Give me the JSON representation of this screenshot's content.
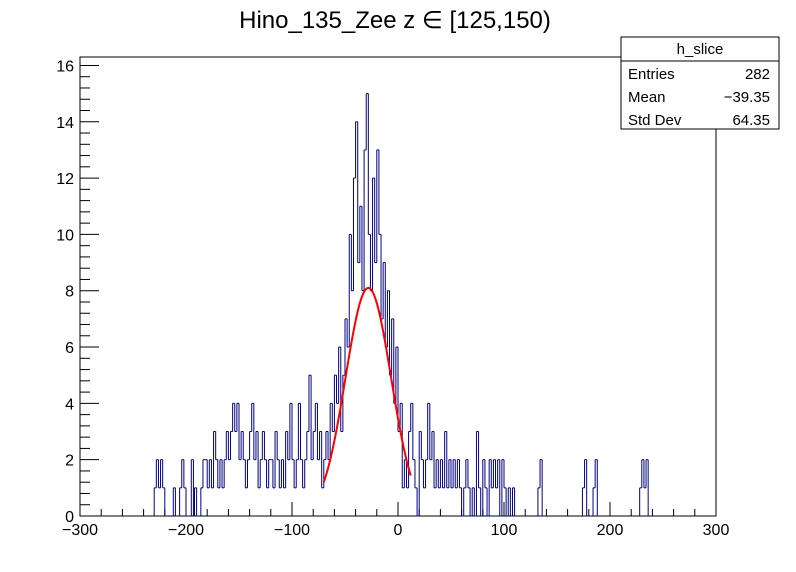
{
  "chart_data": {
    "type": "bar",
    "title": "Hino_135_Zee z  ∈ [125,150)",
    "xlabel": "",
    "ylabel": "",
    "xlim": [
      -300,
      300
    ],
    "ylim": [
      0,
      16.3
    ],
    "x_ticks": [
      "−300",
      "−200",
      "−100",
      "0",
      "100",
      "200",
      "300"
    ],
    "x_tick_values": [
      -300,
      -200,
      -100,
      0,
      100,
      200,
      300
    ],
    "y_ticks": [
      "0",
      "2",
      "4",
      "6",
      "8",
      "10",
      "12",
      "14",
      "16"
    ],
    "y_tick_values": [
      0,
      2,
      4,
      6,
      8,
      10,
      12,
      14,
      16
    ],
    "bin_width": 2,
    "histogram": [
      {
        "x": -280,
        "y": 0
      },
      {
        "x": -230,
        "y": 1
      },
      {
        "x": -228,
        "y": 2
      },
      {
        "x": -226,
        "y": 1
      },
      {
        "x": -224,
        "y": 2
      },
      {
        "x": -222,
        "y": 1
      },
      {
        "x": -220,
        "y": 0
      },
      {
        "x": -212,
        "y": 1
      },
      {
        "x": -210,
        "y": 0
      },
      {
        "x": -206,
        "y": 1
      },
      {
        "x": -204,
        "y": 2
      },
      {
        "x": -202,
        "y": 1
      },
      {
        "x": -200,
        "y": 0
      },
      {
        "x": -195,
        "y": 2
      },
      {
        "x": -192,
        "y": 1
      },
      {
        "x": -190,
        "y": 0
      },
      {
        "x": -186,
        "y": 1
      },
      {
        "x": -184,
        "y": 2
      },
      {
        "x": -182,
        "y": 2
      },
      {
        "x": -180,
        "y": 1
      },
      {
        "x": -178,
        "y": 2
      },
      {
        "x": -176,
        "y": 1
      },
      {
        "x": -174,
        "y": 3
      },
      {
        "x": -172,
        "y": 2
      },
      {
        "x": -170,
        "y": 1
      },
      {
        "x": -168,
        "y": 2
      },
      {
        "x": -166,
        "y": 1
      },
      {
        "x": -164,
        "y": 2
      },
      {
        "x": -162,
        "y": 3
      },
      {
        "x": -160,
        "y": 2
      },
      {
        "x": -158,
        "y": 3
      },
      {
        "x": -156,
        "y": 4
      },
      {
        "x": -154,
        "y": 3
      },
      {
        "x": -152,
        "y": 4
      },
      {
        "x": -150,
        "y": 2
      },
      {
        "x": -148,
        "y": 3
      },
      {
        "x": -146,
        "y": 2
      },
      {
        "x": -144,
        "y": 1
      },
      {
        "x": -142,
        "y": 2
      },
      {
        "x": -140,
        "y": 3
      },
      {
        "x": -138,
        "y": 4
      },
      {
        "x": -136,
        "y": 2
      },
      {
        "x": -134,
        "y": 3
      },
      {
        "x": -132,
        "y": 1
      },
      {
        "x": -130,
        "y": 2
      },
      {
        "x": -128,
        "y": 3
      },
      {
        "x": -126,
        "y": 2
      },
      {
        "x": -124,
        "y": 1
      },
      {
        "x": -122,
        "y": 2
      },
      {
        "x": -120,
        "y": 2
      },
      {
        "x": -118,
        "y": 1
      },
      {
        "x": -116,
        "y": 3
      },
      {
        "x": -114,
        "y": 2
      },
      {
        "x": -112,
        "y": 1
      },
      {
        "x": -110,
        "y": 2
      },
      {
        "x": -108,
        "y": 1
      },
      {
        "x": -106,
        "y": 3
      },
      {
        "x": -104,
        "y": 2
      },
      {
        "x": -102,
        "y": 4
      },
      {
        "x": -100,
        "y": 2
      },
      {
        "x": -98,
        "y": 1
      },
      {
        "x": -96,
        "y": 2
      },
      {
        "x": -94,
        "y": 4
      },
      {
        "x": -92,
        "y": 2
      },
      {
        "x": -90,
        "y": 1
      },
      {
        "x": -88,
        "y": 2
      },
      {
        "x": -86,
        "y": 3
      },
      {
        "x": -84,
        "y": 5
      },
      {
        "x": -82,
        "y": 2
      },
      {
        "x": -80,
        "y": 3
      },
      {
        "x": -78,
        "y": 4
      },
      {
        "x": -76,
        "y": 2
      },
      {
        "x": -74,
        "y": 3
      },
      {
        "x": -72,
        "y": 1
      },
      {
        "x": -70,
        "y": 2
      },
      {
        "x": -68,
        "y": 3
      },
      {
        "x": -66,
        "y": 2
      },
      {
        "x": -64,
        "y": 4
      },
      {
        "x": -62,
        "y": 3
      },
      {
        "x": -60,
        "y": 5
      },
      {
        "x": -58,
        "y": 4
      },
      {
        "x": -56,
        "y": 6
      },
      {
        "x": -54,
        "y": 3
      },
      {
        "x": -52,
        "y": 5
      },
      {
        "x": -50,
        "y": 7
      },
      {
        "x": -48,
        "y": 6
      },
      {
        "x": -46,
        "y": 10
      },
      {
        "x": -44,
        "y": 8
      },
      {
        "x": -42,
        "y": 12
      },
      {
        "x": -40,
        "y": 14
      },
      {
        "x": -38,
        "y": 9
      },
      {
        "x": -36,
        "y": 11
      },
      {
        "x": -34,
        "y": 8
      },
      {
        "x": -32,
        "y": 13
      },
      {
        "x": -30,
        "y": 15
      },
      {
        "x": -28,
        "y": 10
      },
      {
        "x": -26,
        "y": 8
      },
      {
        "x": -24,
        "y": 12
      },
      {
        "x": -22,
        "y": 9
      },
      {
        "x": -20,
        "y": 13
      },
      {
        "x": -18,
        "y": 10
      },
      {
        "x": -16,
        "y": 7
      },
      {
        "x": -14,
        "y": 9
      },
      {
        "x": -12,
        "y": 6
      },
      {
        "x": -10,
        "y": 8
      },
      {
        "x": -8,
        "y": 5
      },
      {
        "x": -6,
        "y": 7
      },
      {
        "x": -4,
        "y": 4
      },
      {
        "x": -2,
        "y": 6
      },
      {
        "x": 0,
        "y": 3
      },
      {
        "x": 2,
        "y": 4
      },
      {
        "x": 4,
        "y": 1
      },
      {
        "x": 6,
        "y": 2
      },
      {
        "x": 8,
        "y": 1
      },
      {
        "x": 10,
        "y": 3
      },
      {
        "x": 12,
        "y": 4
      },
      {
        "x": 14,
        "y": 2
      },
      {
        "x": 16,
        "y": 1
      },
      {
        "x": 18,
        "y": 0
      },
      {
        "x": 20,
        "y": 3
      },
      {
        "x": 22,
        "y": 2
      },
      {
        "x": 24,
        "y": 1
      },
      {
        "x": 26,
        "y": 2
      },
      {
        "x": 28,
        "y": 4
      },
      {
        "x": 30,
        "y": 2
      },
      {
        "x": 32,
        "y": 3
      },
      {
        "x": 34,
        "y": 1
      },
      {
        "x": 36,
        "y": 2
      },
      {
        "x": 38,
        "y": 1
      },
      {
        "x": 40,
        "y": 2
      },
      {
        "x": 42,
        "y": 1
      },
      {
        "x": 44,
        "y": 3
      },
      {
        "x": 46,
        "y": 1
      },
      {
        "x": 48,
        "y": 2
      },
      {
        "x": 50,
        "y": 1
      },
      {
        "x": 52,
        "y": 2
      },
      {
        "x": 54,
        "y": 1
      },
      {
        "x": 56,
        "y": 2
      },
      {
        "x": 58,
        "y": 1
      },
      {
        "x": 60,
        "y": 0
      },
      {
        "x": 62,
        "y": 1
      },
      {
        "x": 64,
        "y": 2
      },
      {
        "x": 66,
        "y": 1
      },
      {
        "x": 68,
        "y": 0
      },
      {
        "x": 70,
        "y": 1
      },
      {
        "x": 72,
        "y": 0
      },
      {
        "x": 74,
        "y": 3
      },
      {
        "x": 76,
        "y": 1
      },
      {
        "x": 78,
        "y": 0
      },
      {
        "x": 80,
        "y": 2
      },
      {
        "x": 82,
        "y": 1
      },
      {
        "x": 84,
        "y": 0
      },
      {
        "x": 86,
        "y": 2
      },
      {
        "x": 88,
        "y": 1
      },
      {
        "x": 90,
        "y": 2
      },
      {
        "x": 92,
        "y": 1
      },
      {
        "x": 94,
        "y": 2
      },
      {
        "x": 96,
        "y": 0
      },
      {
        "x": 98,
        "y": 2
      },
      {
        "x": 100,
        "y": 1
      },
      {
        "x": 102,
        "y": 0
      },
      {
        "x": 104,
        "y": 1
      },
      {
        "x": 106,
        "y": 0
      },
      {
        "x": 108,
        "y": 1
      },
      {
        "x": 110,
        "y": 0
      },
      {
        "x": 132,
        "y": 1
      },
      {
        "x": 134,
        "y": 2
      },
      {
        "x": 136,
        "y": 0
      },
      {
        "x": 174,
        "y": 1
      },
      {
        "x": 176,
        "y": 2
      },
      {
        "x": 178,
        "y": 0
      },
      {
        "x": 184,
        "y": 1
      },
      {
        "x": 186,
        "y": 2
      },
      {
        "x": 188,
        "y": 0
      },
      {
        "x": 228,
        "y": 1
      },
      {
        "x": 230,
        "y": 2
      },
      {
        "x": 232,
        "y": 1
      },
      {
        "x": 234,
        "y": 2
      },
      {
        "x": 236,
        "y": 0
      }
    ],
    "fit": {
      "type": "gaussian",
      "constant": 8.1,
      "mean": -28,
      "sigma": 21.5,
      "x_range": [
        -70,
        12
      ],
      "color": "#ff0000"
    },
    "stats_box": {
      "name": "h_slice",
      "entries_label": "Entries",
      "entries_value": "282",
      "mean_label": "Mean",
      "mean_value": "−39.35",
      "stddev_label": "Std Dev",
      "stddev_value": "64.35"
    },
    "colors": {
      "histogram": "#000080",
      "fit": "#ff0000",
      "axes": "#000000"
    }
  }
}
